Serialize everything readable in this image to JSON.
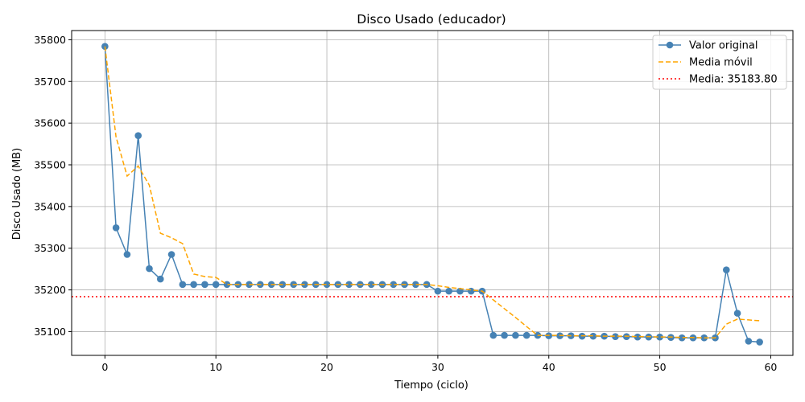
{
  "chart_data": {
    "type": "line",
    "title": "Disco Usado (educador)",
    "xlabel": "Tiempo (ciclo)",
    "ylabel": "Disco Usado (MB)",
    "xlim": [
      -3,
      62
    ],
    "ylim": [
      35043,
      35822
    ],
    "xticks": [
      0,
      10,
      20,
      30,
      40,
      50,
      60
    ],
    "yticks": [
      35100,
      35200,
      35300,
      35400,
      35500,
      35600,
      35700,
      35800
    ],
    "grid": true,
    "legend_position": "top-right",
    "series": [
      {
        "name": "Valor original",
        "style": "solid-markers",
        "color": "#4682b4",
        "x": [
          0,
          1,
          2,
          3,
          4,
          5,
          6,
          7,
          8,
          9,
          10,
          11,
          12,
          13,
          14,
          15,
          16,
          17,
          18,
          19,
          20,
          21,
          22,
          23,
          24,
          25,
          26,
          27,
          28,
          29,
          30,
          31,
          32,
          33,
          34,
          35,
          36,
          37,
          38,
          39,
          40,
          41,
          42,
          43,
          44,
          45,
          46,
          47,
          48,
          49,
          50,
          51,
          52,
          53,
          54,
          55,
          56,
          57,
          58,
          59
        ],
        "values": [
          35784,
          35349,
          35285,
          35570,
          35251,
          35226,
          35285,
          35213,
          35213,
          35213,
          35213,
          35213,
          35213,
          35213,
          35213,
          35213,
          35213,
          35213,
          35213,
          35213,
          35213,
          35213,
          35213,
          35213,
          35213,
          35213,
          35213,
          35213,
          35213,
          35213,
          35197,
          35197,
          35197,
          35197,
          35197,
          35091,
          35091,
          35091,
          35091,
          35091,
          35090,
          35090,
          35090,
          35089,
          35089,
          35089,
          35088,
          35088,
          35087,
          35087,
          35087,
          35086,
          35085,
          35085,
          35085,
          35085,
          35248,
          35144,
          35077,
          35075
        ]
      },
      {
        "name": "Media móvil",
        "style": "dashed",
        "color": "#ffa500",
        "x": [
          0,
          1,
          2,
          3,
          4,
          5,
          6,
          7,
          8,
          9,
          10,
          11,
          12,
          13,
          14,
          15,
          16,
          17,
          18,
          19,
          20,
          21,
          22,
          23,
          24,
          25,
          26,
          27,
          28,
          29,
          30,
          31,
          32,
          33,
          34,
          35,
          36,
          37,
          38,
          39,
          40,
          41,
          42,
          43,
          44,
          45,
          46,
          47,
          48,
          49,
          50,
          51,
          52,
          53,
          54,
          55,
          56,
          57,
          58,
          59
        ],
        "values": [
          35784,
          35567,
          35473,
          35497,
          35451,
          35336,
          35325,
          35311,
          35238,
          35232,
          35230,
          35213,
          35213,
          35213,
          35213,
          35213,
          35213,
          35213,
          35213,
          35213,
          35213,
          35213,
          35213,
          35213,
          35213,
          35213,
          35213,
          35213,
          35213,
          35213,
          35210,
          35206,
          35203,
          35200,
          35197,
          35176,
          35155,
          35134,
          35112,
          35091,
          35091,
          35091,
          35090,
          35090,
          35090,
          35089,
          35089,
          35089,
          35088,
          35088,
          35087,
          35087,
          35086,
          35086,
          35085,
          35085,
          35118,
          35130,
          35128,
          35126
        ]
      },
      {
        "name": "Media: 35183.80",
        "style": "dotted-hline",
        "color": "#ff0000",
        "value": 35183.8
      }
    ]
  }
}
